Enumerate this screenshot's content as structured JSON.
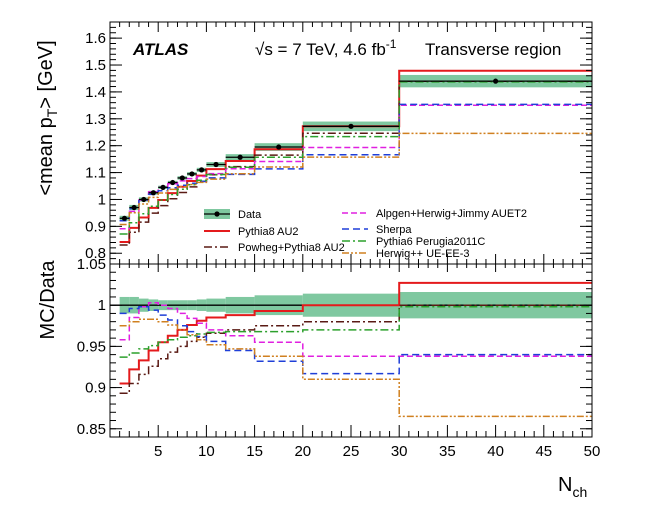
{
  "chart_data": {
    "type": "line",
    "header": {
      "experiment": "ATLAS",
      "energy_prefix": "√s = 7 TeV, 4.6 fb",
      "energy_sup": "-1",
      "region": "Transverse region"
    },
    "xlabel_main": "N",
    "xlabel_sub": "ch",
    "xlim": [
      0,
      50
    ],
    "x_ticks": [
      5,
      10,
      15,
      20,
      25,
      30,
      35,
      40,
      45,
      50
    ],
    "top": {
      "ylabel_prefix": "<mean p",
      "ylabel_sub": "T",
      "ylabel_suffix": "> [GeV]",
      "ylim": [
        0.76,
        1.66
      ],
      "y_ticks": [
        0.8,
        0.9,
        1.0,
        1.1,
        1.2,
        1.3,
        1.4,
        1.5,
        1.6
      ],
      "y_tick_labels": [
        "0.8",
        "0.9",
        "1",
        "1.1",
        "1.2",
        "1.3",
        "1.4",
        "1.5",
        "1.6"
      ]
    },
    "bottom": {
      "ylabel": "MC/Data",
      "ylim": [
        0.84,
        1.05
      ],
      "y_ticks": [
        0.85,
        0.9,
        0.95,
        1.0,
        1.05
      ],
      "y_tick_labels": [
        "0.85",
        "0.9",
        "0.95",
        "1",
        "1.05"
      ]
    },
    "bins": [
      1,
      2,
      3,
      4,
      5,
      6,
      7,
      8,
      9,
      10,
      12,
      15,
      20,
      30,
      50
    ],
    "data": {
      "name": "Data",
      "color": "#000000",
      "band_color": "#7fc8a0",
      "x": [
        1.5,
        2.5,
        3.5,
        4.5,
        5.5,
        6.5,
        7.5,
        8.5,
        9.5,
        11,
        13.5,
        17.5,
        25,
        40
      ],
      "y": [
        0.93,
        0.97,
        1.0,
        1.025,
        1.045,
        1.063,
        1.08,
        1.095,
        1.11,
        1.13,
        1.157,
        1.195,
        1.272,
        1.44
      ],
      "rel_err": [
        0.01,
        0.01,
        0.008,
        0.007,
        0.006,
        0.006,
        0.006,
        0.006,
        0.007,
        0.008,
        0.01,
        0.012,
        0.014,
        0.016
      ]
    },
    "series": [
      {
        "name": "Pythia8 AU2",
        "color": "#e41a1c",
        "dash": "",
        "width": 2,
        "ratio": [
          0.905,
          0.922,
          0.933,
          0.945,
          0.955,
          0.963,
          0.97,
          0.976,
          0.981,
          0.985,
          0.988,
          0.993,
          1.0,
          1.027
        ]
      },
      {
        "name": "Powheg+Pythia8 AU2",
        "color": "#5a1a14",
        "dash": "8,3,2,3",
        "width": 1.5,
        "ratio": [
          0.893,
          0.905,
          0.916,
          0.926,
          0.935,
          0.943,
          0.95,
          0.956,
          0.961,
          0.966,
          0.97,
          0.975,
          0.98,
          1.0
        ]
      },
      {
        "name": "Alpgen+Herwig+Jimmy AUET2",
        "color": "#e020e0",
        "dash": "6,3",
        "width": 1.5,
        "ratio": [
          0.958,
          0.985,
          0.998,
          1.003,
          1.0,
          0.996,
          0.99,
          0.984,
          0.978,
          0.97,
          0.963,
          0.955,
          0.938,
          0.938
        ]
      },
      {
        "name": "Sherpa",
        "color": "#1f3fd8",
        "dash": "7,4",
        "width": 1.5,
        "ratio": [
          0.99,
          0.996,
          0.998,
          0.994,
          0.988,
          0.982,
          0.975,
          0.968,
          0.962,
          0.956,
          0.945,
          0.932,
          0.917,
          0.94
        ]
      },
      {
        "name": "Pythia6 Perugia2011C",
        "color": "#2ca02c",
        "dash": "8,3,2,3",
        "width": 1.5,
        "ratio": [
          0.937,
          0.942,
          0.947,
          0.951,
          0.955,
          0.958,
          0.961,
          0.963,
          0.965,
          0.967,
          0.968,
          0.968,
          0.97,
          0.998
        ]
      },
      {
        "name": "Herwig++ UE-EE-3",
        "color": "#d08020",
        "dash": "7,2,2,2,2,2",
        "width": 1.5,
        "ratio": [
          0.975,
          0.98,
          0.983,
          0.983,
          0.98,
          0.976,
          0.97,
          0.964,
          0.958,
          0.952,
          0.947,
          0.938,
          0.91,
          0.865
        ]
      }
    ]
  }
}
